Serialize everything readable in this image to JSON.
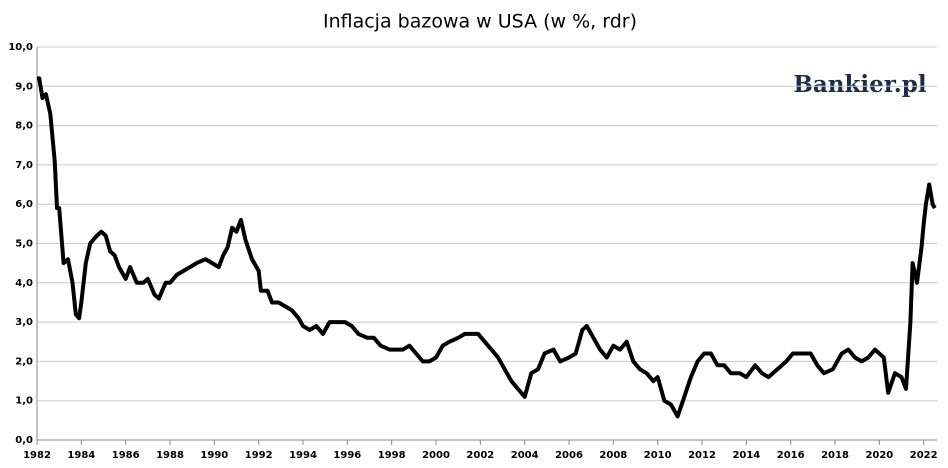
{
  "chart_data": {
    "type": "line",
    "title": "Inflacja bazowa w USA (w %, rdr)",
    "logo": "Bankier.pl",
    "color": "#000000",
    "grid": true,
    "x": [
      1982.0,
      1982.1,
      1982.25,
      1982.4,
      1982.6,
      1982.8,
      1982.9,
      1983.0,
      1983.2,
      1983.4,
      1983.6,
      1983.75,
      1983.9,
      1984.0,
      1984.2,
      1984.4,
      1984.7,
      1984.9,
      1985.1,
      1985.3,
      1985.5,
      1985.7,
      1986.0,
      1986.2,
      1986.5,
      1986.8,
      1987.0,
      1987.3,
      1987.5,
      1987.8,
      1988.0,
      1988.3,
      1988.6,
      1988.9,
      1989.2,
      1989.6,
      1989.9,
      1990.2,
      1990.4,
      1990.6,
      1990.8,
      1991.0,
      1991.2,
      1991.4,
      1991.7,
      1992.0,
      1992.1,
      1992.4,
      1992.6,
      1992.9,
      1993.2,
      1993.5,
      1993.8,
      1994.0,
      1994.3,
      1994.6,
      1994.9,
      1995.2,
      1995.5,
      1995.9,
      1996.2,
      1996.5,
      1996.9,
      1997.2,
      1997.5,
      1997.9,
      1998.2,
      1998.5,
      1998.8,
      1999.1,
      1999.4,
      1999.7,
      2000.0,
      2000.3,
      2000.6,
      2001.0,
      2001.3,
      2001.6,
      2001.9,
      2002.2,
      2002.5,
      2002.8,
      2003.1,
      2003.4,
      2003.7,
      2004.0,
      2004.3,
      2004.6,
      2004.9,
      2005.3,
      2005.6,
      2006.0,
      2006.3,
      2006.6,
      2006.8,
      2007.1,
      2007.4,
      2007.7,
      2008.0,
      2008.3,
      2008.6,
      2008.9,
      2009.2,
      2009.5,
      2009.8,
      2010.0,
      2010.3,
      2010.6,
      2010.9,
      2011.2,
      2011.5,
      2011.8,
      2012.1,
      2012.4,
      2012.7,
      2013.0,
      2013.3,
      2013.7,
      2014.0,
      2014.4,
      2014.7,
      2015.0,
      2015.4,
      2015.8,
      2016.1,
      2016.5,
      2016.9,
      2017.2,
      2017.5,
      2017.9,
      2018.3,
      2018.6,
      2018.9,
      2019.2,
      2019.5,
      2019.8,
      2020.2,
      2020.4,
      2020.7,
      2021.0,
      2021.2,
      2021.4,
      2021.5,
      2021.7,
      2021.9,
      2022.0,
      2022.1,
      2022.25,
      2022.4,
      2022.5
    ],
    "values": [
      9.2,
      9.2,
      8.7,
      8.8,
      8.3,
      7.1,
      5.9,
      5.9,
      4.5,
      4.6,
      4.0,
      3.2,
      3.1,
      3.5,
      4.5,
      5.0,
      5.2,
      5.3,
      5.2,
      4.8,
      4.7,
      4.4,
      4.1,
      4.4,
      4.0,
      4.0,
      4.1,
      3.7,
      3.6,
      4.0,
      4.0,
      4.2,
      4.3,
      4.4,
      4.5,
      4.6,
      4.5,
      4.4,
      4.7,
      4.9,
      5.4,
      5.3,
      5.6,
      5.1,
      4.6,
      4.3,
      3.8,
      3.8,
      3.5,
      3.5,
      3.4,
      3.3,
      3.1,
      2.9,
      2.8,
      2.9,
      2.7,
      3.0,
      3.0,
      3.0,
      2.9,
      2.7,
      2.6,
      2.6,
      2.4,
      2.3,
      2.3,
      2.3,
      2.4,
      2.2,
      2.0,
      2.0,
      2.1,
      2.4,
      2.5,
      2.6,
      2.7,
      2.7,
      2.7,
      2.5,
      2.3,
      2.1,
      1.8,
      1.5,
      1.3,
      1.1,
      1.7,
      1.8,
      2.2,
      2.3,
      2.0,
      2.1,
      2.2,
      2.8,
      2.9,
      2.6,
      2.3,
      2.1,
      2.4,
      2.3,
      2.5,
      2.0,
      1.8,
      1.7,
      1.5,
      1.6,
      1.0,
      0.9,
      0.6,
      1.1,
      1.6,
      2.0,
      2.2,
      2.2,
      1.9,
      1.9,
      1.7,
      1.7,
      1.6,
      1.9,
      1.7,
      1.6,
      1.8,
      2.0,
      2.2,
      2.2,
      2.2,
      1.9,
      1.7,
      1.8,
      2.2,
      2.3,
      2.1,
      2.0,
      2.1,
      2.3,
      2.1,
      1.2,
      1.7,
      1.6,
      1.3,
      3.0,
      4.5,
      4.0,
      4.9,
      5.5,
      6.0,
      6.5,
      6.0,
      5.9
    ],
    "xlim": [
      1982,
      2022.6
    ],
    "xticks": [
      1982,
      1984,
      1986,
      1988,
      1990,
      1992,
      1994,
      1996,
      1998,
      2000,
      2002,
      2004,
      2006,
      2008,
      2010,
      2012,
      2014,
      2016,
      2018,
      2020,
      2022
    ],
    "ylim": [
      0,
      10
    ],
    "yticks": [
      {
        "value": 0,
        "label": "0,0"
      },
      {
        "value": 1,
        "label": "1,0"
      },
      {
        "value": 2,
        "label": "2,0"
      },
      {
        "value": 3,
        "label": "3,0"
      },
      {
        "value": 4,
        "label": "4,0"
      },
      {
        "value": 5,
        "label": "5,0"
      },
      {
        "value": 6,
        "label": "6,0"
      },
      {
        "value": 7,
        "label": "7,0"
      },
      {
        "value": 8,
        "label": "8,0"
      },
      {
        "value": 9,
        "label": "9,0"
      },
      {
        "value": 10,
        "label": "10,0"
      }
    ]
  }
}
